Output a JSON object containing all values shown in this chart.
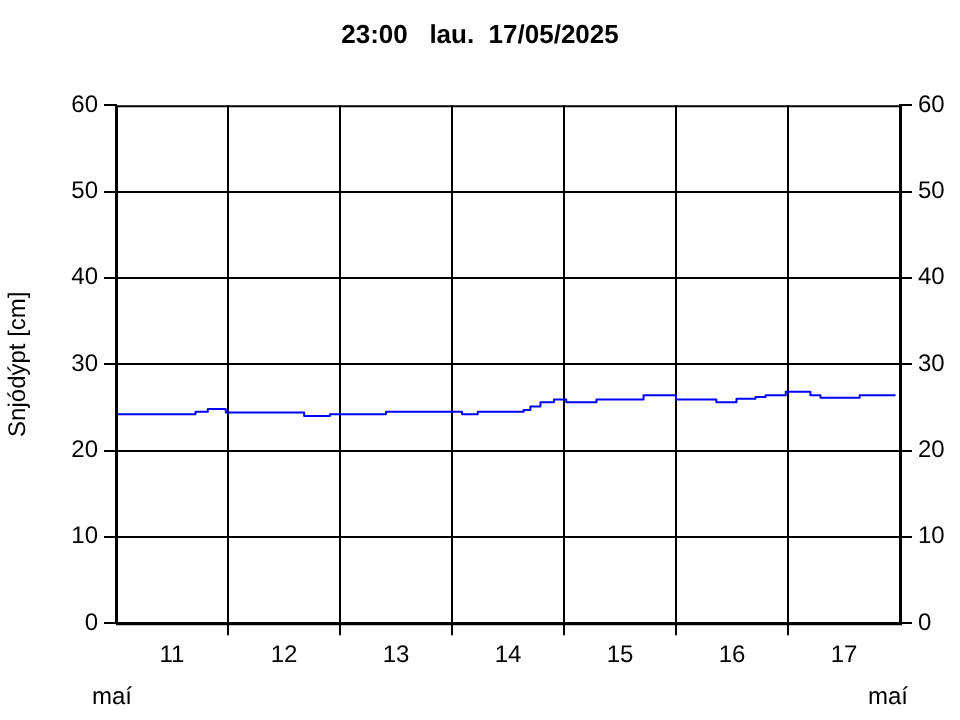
{
  "chart_data": {
    "type": "step",
    "title": "23:00   lau.  17/05/2025",
    "ylabel": "Snjódýpt [cm]",
    "annotations": [
      "maí",
      "maí"
    ],
    "x": [
      11.0,
      11.71,
      11.82,
      11.98,
      12.68,
      12.91,
      13.41,
      14.09,
      14.23,
      14.64,
      14.7,
      14.79,
      14.91,
      15.02,
      15.29,
      15.71,
      16.0,
      16.36,
      16.54,
      16.71,
      16.8,
      16.98,
      17.2,
      17.29,
      17.64,
      17.79,
      17.96
    ],
    "series": [
      {
        "color": "#0000ff",
        "values": [
          24.0,
          24.2,
          24.5,
          24.8,
          24.4,
          24.0,
          24.2,
          24.5,
          24.2,
          24.5,
          24.7,
          25.1,
          25.6,
          25.9,
          25.6,
          25.9,
          26.4,
          25.9,
          25.6,
          26.0,
          26.2,
          26.4,
          26.8,
          26.4,
          26.1,
          26.4,
          26.4
        ]
      }
    ],
    "xlim": [
      11,
      18
    ],
    "xticks": [
      {
        "value": 11.5,
        "label": "11"
      },
      {
        "value": 12,
        "label": null
      },
      {
        "value": 12.5,
        "label": "12"
      },
      {
        "value": 13,
        "label": null
      },
      {
        "value": 13.5,
        "label": "13"
      },
      {
        "value": 14,
        "label": null
      },
      {
        "value": 14.5,
        "label": "14"
      },
      {
        "value": 15,
        "label": null
      },
      {
        "value": 15.5,
        "label": "15"
      },
      {
        "value": 16,
        "label": null
      },
      {
        "value": 16.5,
        "label": "16"
      },
      {
        "value": 17,
        "label": null
      },
      {
        "value": 17.5,
        "label": "17"
      }
    ],
    "ylim": [
      0,
      60
    ],
    "yticks": [
      0,
      10,
      20,
      30,
      40,
      50,
      60
    ],
    "y2lim": [
      0,
      60
    ],
    "y2ticks": [
      0,
      10,
      20,
      30,
      40,
      50,
      60
    ],
    "grid": true,
    "legend": false,
    "marker": "none",
    "line_style": "solid"
  }
}
